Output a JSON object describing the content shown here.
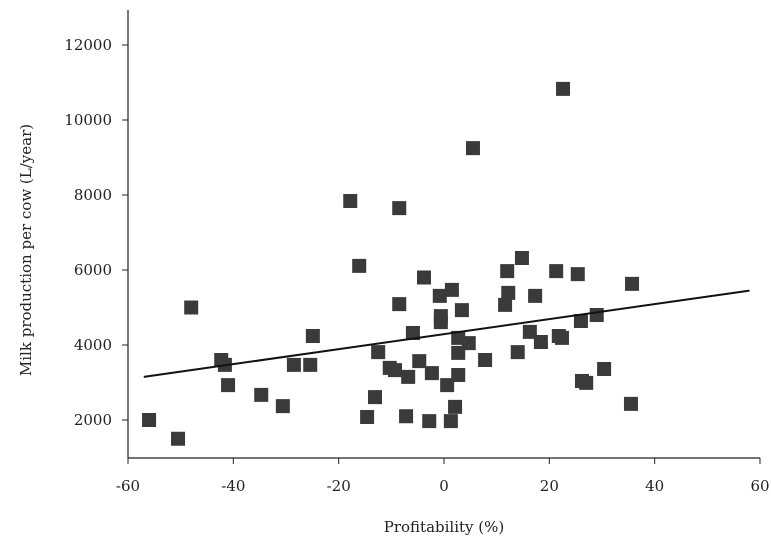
{
  "chart_data": {
    "type": "scatter",
    "xlabel": "Profitability (%)",
    "ylabel": "Milk production per cow (L/year)",
    "color": "#3a3a3a",
    "xlim": [
      -60,
      60
    ],
    "xticks": [
      -60,
      -40,
      -20,
      0,
      20,
      40,
      60
    ],
    "ylim": [
      1000,
      13000
    ],
    "yticks": [
      2000,
      4000,
      6000,
      8000,
      10000,
      12000
    ],
    "x": [
      -56,
      -50.5,
      -48,
      -42.3,
      -41.6,
      -41,
      -34.7,
      -30.6,
      -28.5,
      -25.4,
      -24.9,
      -17.8,
      -16.1,
      -14.6,
      -13.1,
      -12.5,
      -10.3,
      -9.3,
      -8.5,
      -8.5,
      -7.2,
      -6.8,
      -5.9,
      -4.7,
      -3.8,
      -2.8,
      -2.3,
      -0.8,
      -0.6,
      -0.6,
      0.6,
      1.3,
      1.5,
      2.1,
      2.7,
      2.7,
      2.7,
      3.4,
      4.7,
      5.5,
      7.8,
      11.6,
      12,
      12.2,
      14,
      14.8,
      16.3,
      17.3,
      18.4,
      21.3,
      21.8,
      22.4,
      22.6,
      25.4,
      26,
      26.2,
      27,
      29,
      30.4,
      35.5,
      35.7
    ],
    "values": [
      2000,
      1500,
      5000,
      3600,
      3470,
      2930,
      2670,
      2370,
      3470,
      3470,
      4240,
      7840,
      6110,
      2080,
      2610,
      3810,
      3390,
      3330,
      5090,
      7650,
      2100,
      3150,
      4320,
      3570,
      5800,
      1970,
      3250,
      5310,
      4770,
      4610,
      2930,
      1970,
      5470,
      2350,
      4190,
      3790,
      3200,
      4930,
      4050,
      9250,
      3600,
      5070,
      5970,
      5390,
      3810,
      6320,
      4350,
      5310,
      4080,
      5970,
      4240,
      4190,
      10830,
      5890,
      4640,
      3040,
      2990,
      4800,
      3360,
      2430,
      5630
    ],
    "trendline": {
      "x": [
        -57,
        58
      ],
      "values": [
        3150,
        5450
      ],
      "color": "#111111"
    }
  }
}
